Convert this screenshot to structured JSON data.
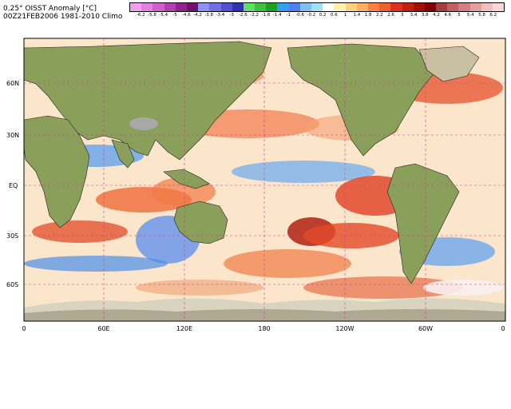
{
  "header": {
    "line1": "0.25° OISST Anomaly [°C]",
    "line2": "00Z21FEB2006 1981-2010 Climo"
  },
  "colorbar": {
    "labels": [
      "-6.2",
      "-5.8",
      "-5.4",
      "-5",
      "-4.6",
      "-4.2",
      "-3.8",
      "-3.4",
      "-3",
      "-2.6",
      "-2.2",
      "-1.8",
      "-1.4",
      "-1",
      "-0.6",
      "-0.2",
      "0.2",
      "0.6",
      "1",
      "1.4",
      "1.8",
      "2.2",
      "2.6",
      "3",
      "3.4",
      "3.8",
      "4.2",
      "4.6",
      "5",
      "5.4",
      "5.8",
      "6.2"
    ],
    "colors": [
      "#f0a0f0",
      "#e080e0",
      "#d060d0",
      "#b040b0",
      "#902090",
      "#701070",
      "#9090f0",
      "#7070e0",
      "#5050d0",
      "#3030b0",
      "#60e060",
      "#40c040",
      "#20a020",
      "#30a0f0",
      "#5080f0",
      "#80c0f0",
      "#a0e0f8",
      "#ffffff",
      "#fff0b0",
      "#ffd080",
      "#ffb060",
      "#ff8040",
      "#f06030",
      "#e03020",
      "#c02010",
      "#a01008",
      "#800000",
      "#a04040",
      "#c06060",
      "#d08080",
      "#e0a0a0",
      "#f0c0c0",
      "#f8d8d8"
    ]
  },
  "axes": {
    "y_labels": [
      "60N",
      "30N",
      "EQ",
      "30S",
      "60S"
    ],
    "x_labels": [
      "0",
      "60E",
      "120E",
      "180",
      "120W",
      "60W",
      "0"
    ]
  },
  "map_legend": {
    "land": "#8a9f5a",
    "ice": "#d8d4c0",
    "warm": "#e04020",
    "cool": "#3080e0"
  }
}
